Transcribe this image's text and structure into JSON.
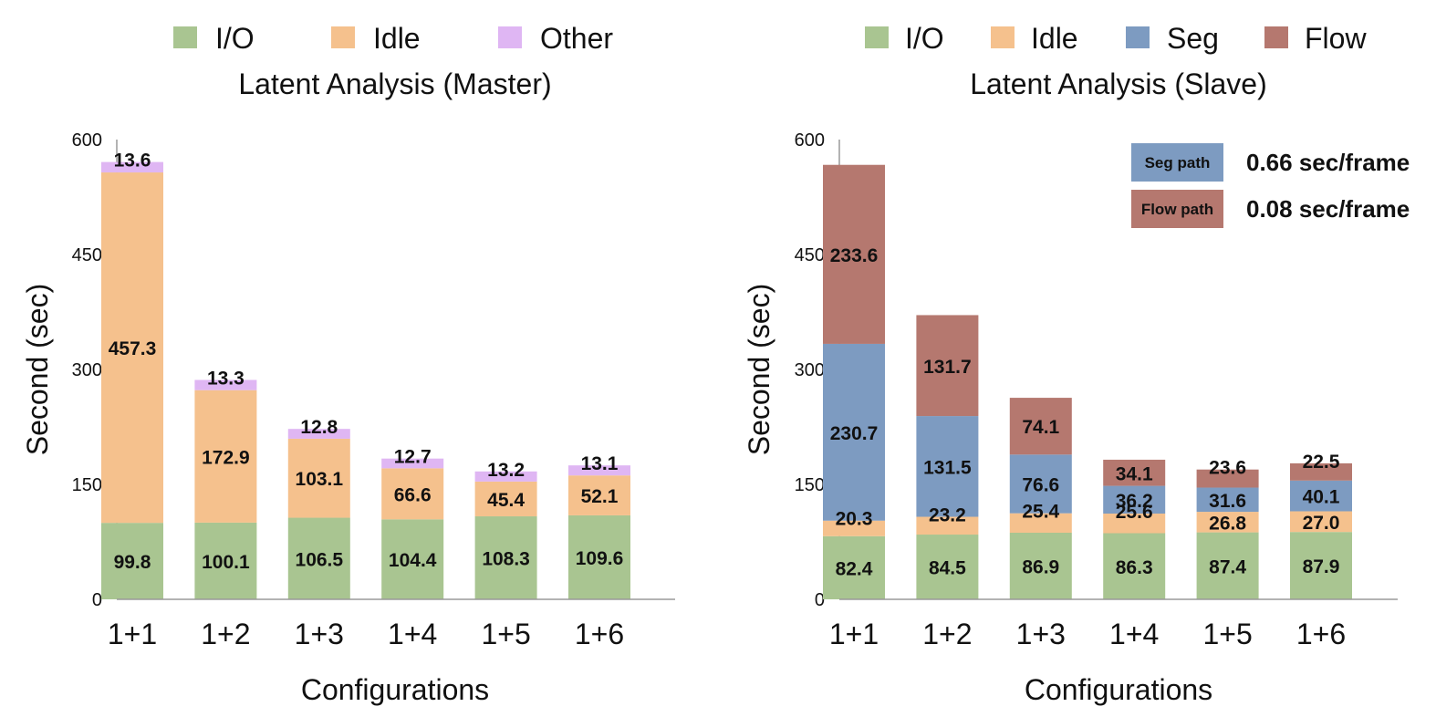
{
  "chart_data": [
    {
      "type": "bar",
      "stacked": true,
      "title": "Latent Analysis (Master)",
      "xlabel": "Configurations",
      "ylabel": "Second (sec)",
      "ylim": [
        0,
        600
      ],
      "yticks": [
        0,
        150,
        300,
        450,
        600
      ],
      "legend_position": "top",
      "categories": [
        "1+1",
        "1+2",
        "1+3",
        "1+4",
        "1+5",
        "1+6"
      ],
      "series": [
        {
          "name": "I/O",
          "color": "#a9c591",
          "values": [
            99.8,
            100.1,
            106.5,
            104.4,
            108.3,
            109.6
          ]
        },
        {
          "name": "Idle",
          "color": "#f5c18d",
          "values": [
            457.3,
            172.9,
            103.1,
            66.6,
            45.4,
            52.1
          ]
        },
        {
          "name": "Other",
          "color": "#dfb6f3",
          "values": [
            13.6,
            13.3,
            12.8,
            12.7,
            13.2,
            13.1
          ]
        }
      ],
      "data_labels": [
        [
          "99.8",
          "100.1",
          "106.5",
          "104.4",
          "108.3",
          "109.6"
        ],
        [
          "457.3",
          "172.9",
          "103.1",
          "66.6",
          "45.4",
          "52.1"
        ],
        [
          "13.6",
          "13.3",
          "12.8",
          "12.7",
          "13.2",
          "13.1"
        ]
      ]
    },
    {
      "type": "bar",
      "stacked": true,
      "title": "Latent Analysis (Slave)",
      "xlabel": "Configurations",
      "ylabel": "Second (sec)",
      "ylim": [
        0,
        600
      ],
      "yticks": [
        0,
        150,
        300,
        450,
        600
      ],
      "legend_position": "top",
      "categories": [
        "1+1",
        "1+2",
        "1+3",
        "1+4",
        "1+5",
        "1+6"
      ],
      "series": [
        {
          "name": "I/O",
          "color": "#a9c591",
          "values": [
            82.4,
            84.5,
            86.9,
            86.3,
            87.4,
            87.9
          ]
        },
        {
          "name": "Idle",
          "color": "#f5c18d",
          "values": [
            20.3,
            23.2,
            25.4,
            25.6,
            26.8,
            27.0
          ]
        },
        {
          "name": "Seg",
          "color": "#7d9bc1",
          "values": [
            230.7,
            131.5,
            76.6,
            36.2,
            31.6,
            40.1
          ]
        },
        {
          "name": "Flow",
          "color": "#b5786f",
          "values": [
            233.6,
            131.7,
            74.1,
            34.1,
            23.6,
            22.5
          ]
        }
      ],
      "data_labels": [
        [
          "82.4",
          "84.5",
          "86.9",
          "86.3",
          "87.4",
          "87.9"
        ],
        [
          "20.3",
          "23.2",
          "25.4",
          "25.6",
          "26.8",
          "27.0"
        ],
        [
          "230.7",
          "131.5",
          "76.6",
          "36.2",
          "31.6",
          "40.1"
        ],
        [
          "233.6",
          "131.7",
          "74.1",
          "34.1",
          "23.6",
          "22.5"
        ]
      ],
      "annotations": [
        {
          "label": "Seg path",
          "value": "0.66 sec/frame",
          "color": "#7d9bc1"
        },
        {
          "label": "Flow path",
          "value": "0.08 sec/frame",
          "color": "#b5786f"
        }
      ]
    }
  ]
}
